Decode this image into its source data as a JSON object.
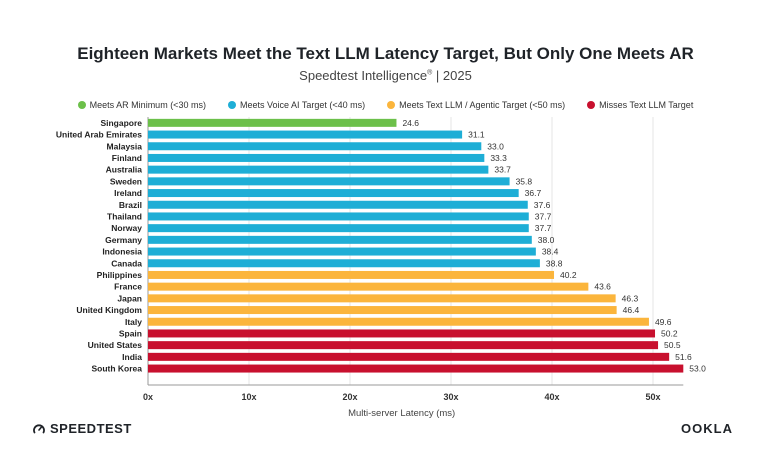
{
  "header": {
    "title": "Eighteen Markets Meet the Text LLM Latency Target, But Only One Meets AR",
    "subtitle_brand": "Speedtest Intelligence",
    "subtitle_mark": "®",
    "subtitle_year": "| 2025"
  },
  "legend": [
    {
      "label": "Meets AR Minimum (<30 ms)",
      "color": "#6cc04a"
    },
    {
      "label": "Meets Voice AI Target (<40 ms)",
      "color": "#1eaed6"
    },
    {
      "label": "Meets Text LLM / Agentic Target (<50 ms)",
      "color": "#fbb53c"
    },
    {
      "label": "Misses Text LLM Target",
      "color": "#c8102e"
    }
  ],
  "footer": {
    "left_logo": "SPEEDTEST",
    "right_logo": "OOKLA"
  },
  "chart_data": {
    "type": "bar",
    "orientation": "horizontal",
    "title": "Eighteen Markets Meet the Text LLM Latency Target, But Only One Meets AR",
    "subtitle": "Speedtest Intelligence® | 2025",
    "xlabel": "Multi-server Latency (ms)",
    "xlim": [
      0,
      53
    ],
    "xticks": [
      "0x",
      "10x",
      "20x",
      "30x",
      "40x",
      "50x"
    ],
    "xtick_values": [
      0,
      10,
      20,
      30,
      40,
      50
    ],
    "grid": true,
    "legend_position": "top",
    "categories": [
      "Singapore",
      "United Arab Emirates",
      "Malaysia",
      "Finland",
      "Australia",
      "Sweden",
      "Ireland",
      "Brazil",
      "Thailand",
      "Norway",
      "Germany",
      "Indonesia",
      "Canada",
      "Philippines",
      "France",
      "Japan",
      "United Kingdom",
      "Italy",
      "Spain",
      "United States",
      "India",
      "South Korea"
    ],
    "values": [
      24.6,
      31.1,
      33.0,
      33.3,
      33.7,
      35.8,
      36.7,
      37.6,
      37.7,
      37.7,
      38.0,
      38.4,
      38.8,
      40.2,
      43.6,
      46.3,
      46.4,
      49.6,
      50.2,
      50.5,
      51.6,
      53.0
    ],
    "value_labels": [
      "24.6",
      "31.1",
      "33.0",
      "33.3",
      "33.7",
      "35.8",
      "36.7",
      "37.6",
      "37.7",
      "37.7",
      "38.0",
      "38.4",
      "38.8",
      "40.2",
      "43.6",
      "46.3",
      "46.4",
      "49.6",
      "50.2",
      "50.5",
      "51.6",
      "53.0"
    ],
    "bar_group": [
      0,
      1,
      1,
      1,
      1,
      1,
      1,
      1,
      1,
      1,
      1,
      1,
      1,
      2,
      2,
      2,
      2,
      2,
      3,
      3,
      3,
      3
    ]
  }
}
